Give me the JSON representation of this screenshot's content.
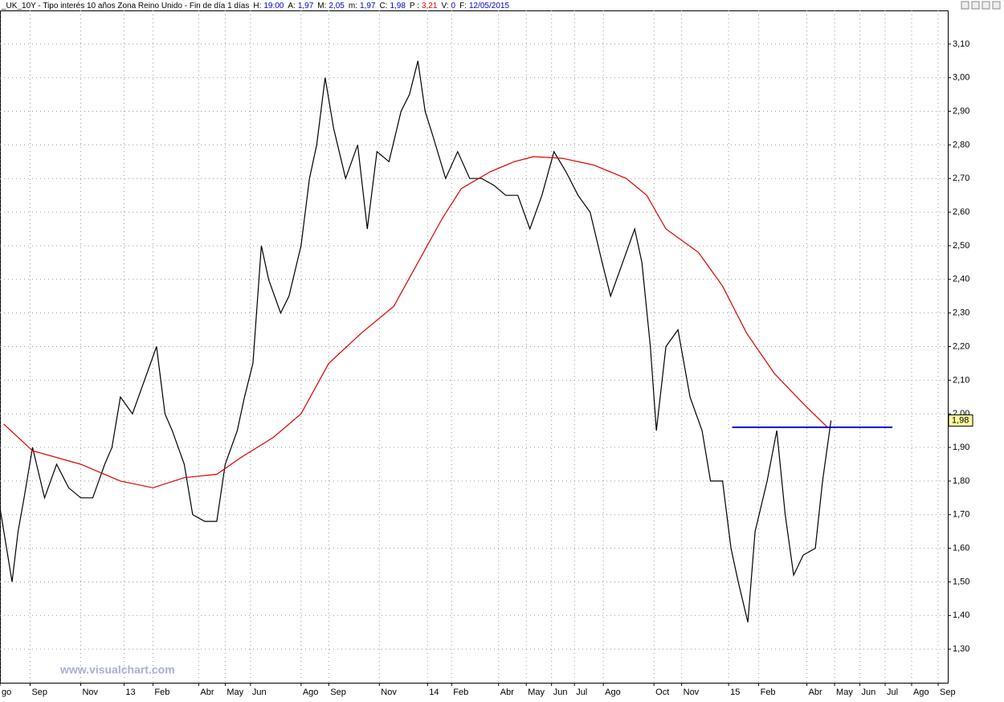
{
  "chart_data": {
    "type": "line",
    "title": "_UK_10Y - Tipo interés 10 años Zona Reino Unido - Fin de día 1 días",
    "header": [
      {
        "label": "H:",
        "value": "19:00",
        "color": "#0000cc"
      },
      {
        "label": "A:",
        "value": "1,97",
        "color": "#0000cc"
      },
      {
        "label": "M:",
        "value": "2,05",
        "color": "#0000cc"
      },
      {
        "label": "m:",
        "value": "1,97",
        "color": "#0000cc"
      },
      {
        "label": "C:",
        "value": "1,98",
        "color": "#0000cc"
      },
      {
        "label": "P :",
        "value": "3,21",
        "color": "#dd0000"
      },
      {
        "label": "V:",
        "value": "0",
        "color": "#0000cc"
      },
      {
        "label": "F:",
        "value": "12/05/2015",
        "color": "#0000cc"
      }
    ],
    "watermark": "www.visualchart.com",
    "series": [
      {
        "color": "#000000",
        "x": [
          0,
          10,
          15,
          20,
          27,
          37,
          47,
          57,
          67,
          77,
          87,
          93,
          100,
          110,
          120,
          130,
          137,
          143,
          153,
          160,
          170,
          180,
          187,
          197,
          203,
          210,
          217,
          223,
          233,
          240,
          250,
          257,
          263,
          270,
          277,
          287,
          297,
          305,
          313,
          323,
          333,
          340,
          347,
          353,
          360,
          370,
          380,
          390,
          400,
          410,
          420,
          430,
          440,
          450,
          460,
          470,
          480,
          490,
          500,
          507,
          517,
          527,
          533,
          540,
          545,
          553,
          563,
          573,
          583,
          590,
          600,
          607,
          613,
          621,
          627,
          637,
          645,
          652,
          659,
          667,
          677,
          683,
          690
        ],
        "values": [
          1.72,
          1.5,
          1.65,
          1.75,
          1.9,
          1.75,
          1.85,
          1.78,
          1.75,
          1.75,
          1.85,
          1.9,
          2.05,
          2.0,
          2.1,
          2.2,
          2.0,
          1.95,
          1.85,
          1.7,
          1.68,
          1.68,
          1.85,
          1.95,
          2.05,
          2.15,
          2.5,
          2.4,
          2.3,
          2.35,
          2.5,
          2.7,
          2.8,
          3.0,
          2.85,
          2.7,
          2.8,
          2.55,
          2.78,
          2.75,
          2.9,
          2.95,
          3.05,
          2.9,
          2.82,
          2.7,
          2.78,
          2.7,
          2.7,
          2.68,
          2.65,
          2.65,
          2.55,
          2.65,
          2.78,
          2.72,
          2.65,
          2.6,
          2.45,
          2.35,
          2.45,
          2.55,
          2.45,
          2.2,
          1.95,
          2.2,
          2.25,
          2.05,
          1.95,
          1.8,
          1.8,
          1.6,
          1.5,
          1.38,
          1.65,
          1.8,
          1.95,
          1.7,
          1.52,
          1.58,
          1.6,
          1.8,
          1.98
        ]
      },
      {
        "color": "#dd0000",
        "x": [
          3,
          27,
          67,
          100,
          127,
          153,
          180,
          200,
          227,
          250,
          273,
          300,
          327,
          347,
          367,
          383,
          407,
          427,
          443,
          467,
          493,
          520,
          537,
          553,
          580,
          600,
          620,
          643,
          667,
          687
        ],
        "values": [
          1.97,
          1.89,
          1.85,
          1.8,
          1.78,
          1.81,
          1.82,
          1.87,
          1.93,
          2.0,
          2.15,
          2.24,
          2.32,
          2.45,
          2.58,
          2.67,
          2.72,
          2.75,
          2.765,
          2.76,
          2.74,
          2.7,
          2.65,
          2.55,
          2.48,
          2.38,
          2.24,
          2.12,
          2.03,
          1.96
        ]
      }
    ],
    "hline": {
      "value": 1.96,
      "x": [
        608,
        741
      ],
      "color": "#0000dd"
    },
    "last_label": {
      "value": 1.98,
      "label": "1,98"
    },
    "xlim": [
      0,
      787
    ],
    "xticks": [
      {
        "value": 0,
        "label": "go"
      },
      {
        "value": 25,
        "label": "Sep"
      },
      {
        "value": 67,
        "label": "Nov"
      },
      {
        "value": 103,
        "label": "13"
      },
      {
        "value": 127,
        "label": "Feb"
      },
      {
        "value": 165,
        "label": "Abr"
      },
      {
        "value": 187,
        "label": "May"
      },
      {
        "value": 208,
        "label": "Jun"
      },
      {
        "value": 250,
        "label": "Ago"
      },
      {
        "value": 273,
        "label": "Sep"
      },
      {
        "value": 315,
        "label": "Nov"
      },
      {
        "value": 355,
        "label": "14"
      },
      {
        "value": 375,
        "label": "Feb"
      },
      {
        "value": 414,
        "label": "Abr"
      },
      {
        "value": 437,
        "label": "May"
      },
      {
        "value": 458,
        "label": "Jun"
      },
      {
        "value": 477,
        "label": "Jul"
      },
      {
        "value": 501,
        "label": "Ago"
      },
      {
        "value": 543,
        "label": "Oct"
      },
      {
        "value": 566,
        "label": "Nov"
      },
      {
        "value": 605,
        "label": "15"
      },
      {
        "value": 630,
        "label": "Feb"
      },
      {
        "value": 670,
        "label": "Abr"
      },
      {
        "value": 693,
        "label": "May"
      },
      {
        "value": 714,
        "label": "Jun"
      },
      {
        "value": 735,
        "label": "Jul"
      },
      {
        "value": 757,
        "label": "Ago"
      },
      {
        "value": 779,
        "label": "Sep"
      }
    ],
    "ylim": [
      1.2,
      3.2
    ],
    "yticks": [
      {
        "value": 1.3,
        "label": "1,30"
      },
      {
        "value": 1.4,
        "label": "1,40"
      },
      {
        "value": 1.5,
        "label": "1,50"
      },
      {
        "value": 1.6,
        "label": "1,60"
      },
      {
        "value": 1.7,
        "label": "1,70"
      },
      {
        "value": 1.8,
        "label": "1,80"
      },
      {
        "value": 1.9,
        "label": "1,90"
      },
      {
        "value": 2.0,
        "label": "2,00"
      },
      {
        "value": 2.1,
        "label": "2,10"
      },
      {
        "value": 2.2,
        "label": "2,20"
      },
      {
        "value": 2.3,
        "label": "2,30"
      },
      {
        "value": 2.4,
        "label": "2,40"
      },
      {
        "value": 2.5,
        "label": "2,50"
      },
      {
        "value": 2.6,
        "label": "2,60"
      },
      {
        "value": 2.7,
        "label": "2,70"
      },
      {
        "value": 2.8,
        "label": "2,80"
      },
      {
        "value": 2.9,
        "label": "2,90"
      },
      {
        "value": 3.0,
        "label": "3,00"
      },
      {
        "value": 3.1,
        "label": "3,10"
      }
    ],
    "grid": true
  }
}
